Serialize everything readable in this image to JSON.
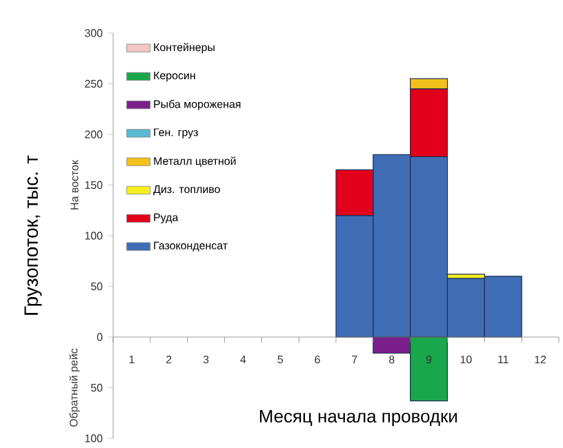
{
  "chart_data": {
    "type": "bar",
    "stacked": true,
    "legend": "top left",
    "grid": false,
    "xlabel": "Месяц начала проводки",
    "ylabel": "Грузопоток, тыс. т",
    "annotations": [
      "На восток",
      "Обратный рейс"
    ],
    "categories": [
      "1",
      "2",
      "3",
      "4",
      "5",
      "6",
      "7",
      "8",
      "9",
      "10",
      "11",
      "12"
    ],
    "ylim": [
      -100,
      300
    ],
    "yticks": [
      {
        "value": -100,
        "label": "100"
      },
      {
        "value": -50,
        "label": "50"
      },
      0,
      50,
      100,
      150,
      200,
      250,
      300
    ],
    "series": [
      {
        "name": "Газоконденсат",
        "color": "#3f6db5",
        "values": [
          null,
          null,
          null,
          null,
          null,
          null,
          120,
          180,
          178,
          58,
          60,
          null
        ]
      },
      {
        "name": "Руда",
        "color": "#e2001a",
        "values": [
          null,
          null,
          null,
          null,
          null,
          null,
          45,
          null,
          67,
          null,
          null,
          null
        ]
      },
      {
        "name": "Диз. топливо",
        "color": "#f5ef1e",
        "values": [
          null,
          null,
          null,
          null,
          null,
          null,
          null,
          null,
          null,
          4,
          null,
          null
        ]
      },
      {
        "name": "Металл цветной",
        "color": "#f2c21b",
        "values": [
          null,
          null,
          null,
          null,
          null,
          null,
          null,
          null,
          10,
          null,
          null,
          null
        ]
      },
      {
        "name": "Ген. груз",
        "color": "#5bb8d4",
        "values": [
          null,
          null,
          null,
          null,
          null,
          null,
          null,
          null,
          null,
          null,
          null,
          null
        ]
      },
      {
        "name": "Рыба мороженая",
        "color": "#7b1f8c",
        "values": [
          null,
          null,
          null,
          null,
          null,
          null,
          null,
          -16,
          null,
          null,
          null,
          null
        ]
      },
      {
        "name": "Керосин",
        "color": "#1aa64a",
        "values": [
          null,
          null,
          null,
          null,
          null,
          null,
          null,
          null,
          -63,
          null,
          null,
          null
        ]
      },
      {
        "name": "Контейнеры",
        "color": "#f2c6c6",
        "values": [
          null,
          null,
          null,
          null,
          null,
          null,
          null,
          null,
          null,
          null,
          null,
          null
        ]
      }
    ]
  }
}
